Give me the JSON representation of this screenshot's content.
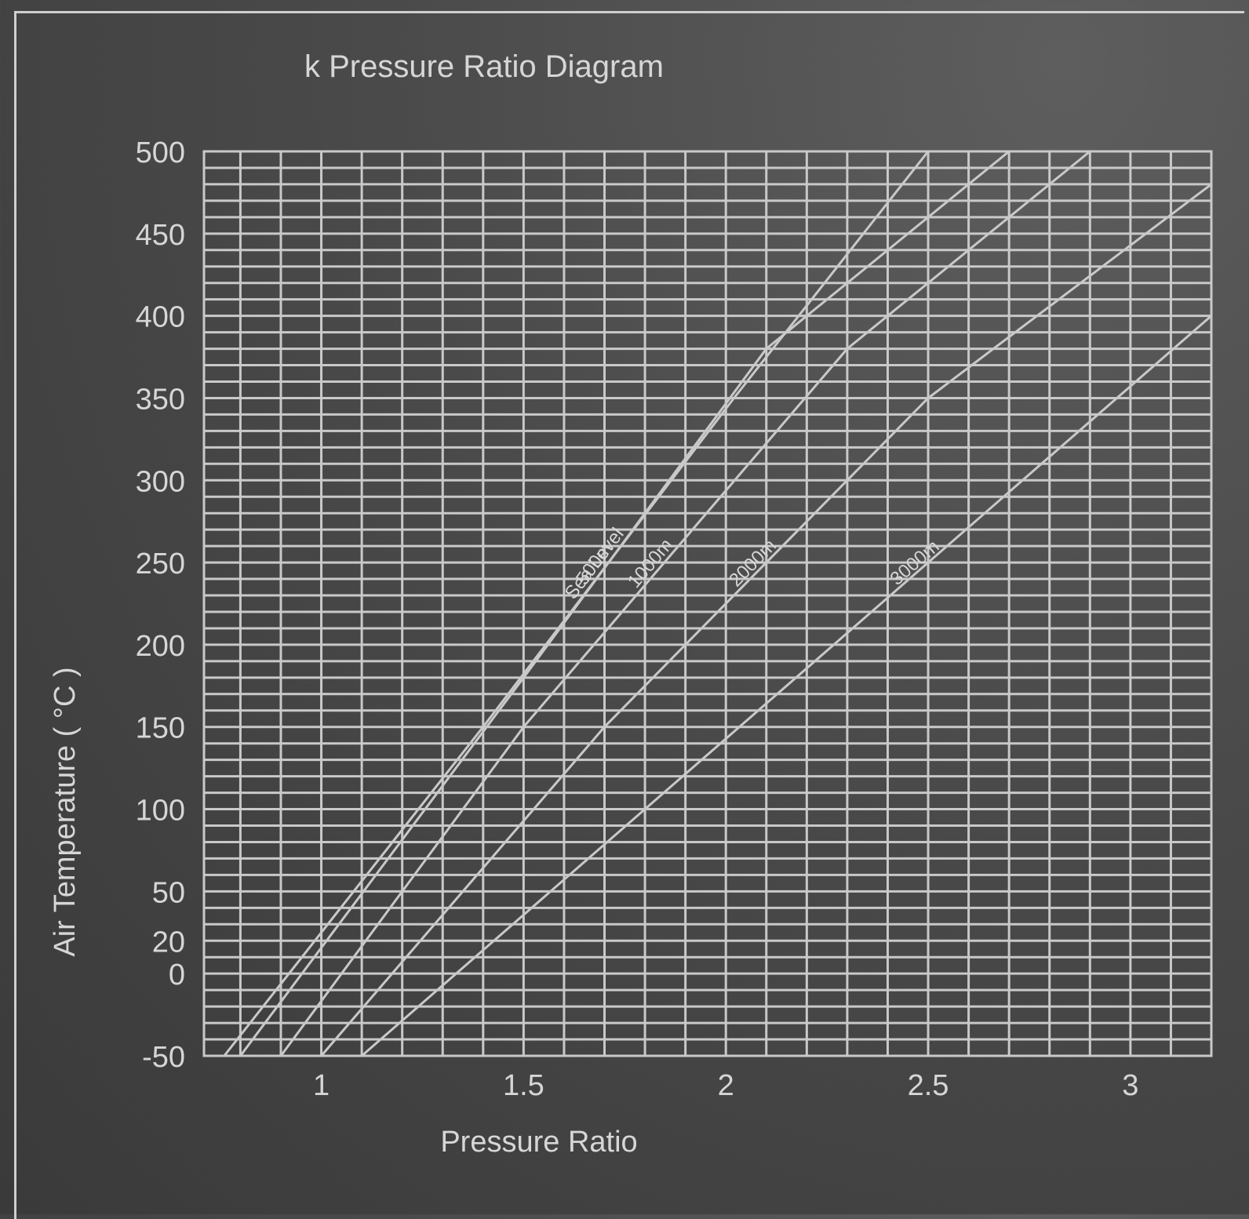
{
  "chart_data": {
    "type": "line",
    "title": "k Pressure Ratio Diagram",
    "xlabel": "Pressure Ratio",
    "ylabel": "Air Temperature ( °C )",
    "xlim": [
      0.71,
      3.2
    ],
    "ylim": [
      -50,
      500
    ],
    "x_ticks": [
      1,
      1.5,
      2,
      2.5,
      3
    ],
    "x_tick_labels": [
      "1",
      "1.5",
      "2",
      "2.5",
      "3"
    ],
    "y_ticks": [
      -50,
      0,
      20,
      50,
      100,
      150,
      200,
      250,
      300,
      350,
      400,
      450,
      500
    ],
    "y_tick_labels": [
      "-50",
      "0",
      "20",
      "50",
      "100",
      "150",
      "200",
      "250",
      "300",
      "350",
      "400",
      "450",
      "500"
    ],
    "grid": true,
    "series": [
      {
        "name": "Sea Level",
        "x": [
          0.76,
          1.4,
          2.02,
          2.5
        ],
        "y": [
          -50,
          150,
          350,
          500
        ]
      },
      {
        "name": "500m",
        "x": [
          0.8,
          1.5,
          2.1,
          2.7
        ],
        "y": [
          -50,
          180,
          380,
          500
        ]
      },
      {
        "name": "1000m",
        "x": [
          0.9,
          1.5,
          2.3,
          2.9
        ],
        "y": [
          -50,
          150,
          380,
          500
        ]
      },
      {
        "name": "2000m",
        "x": [
          1.0,
          1.7,
          2.5,
          3.2
        ],
        "y": [
          -50,
          150,
          350,
          480
        ]
      },
      {
        "name": "3000m",
        "x": [
          1.1,
          1.8,
          2.5,
          3.2
        ],
        "y": [
          -50,
          100,
          250,
          400
        ]
      }
    ]
  }
}
